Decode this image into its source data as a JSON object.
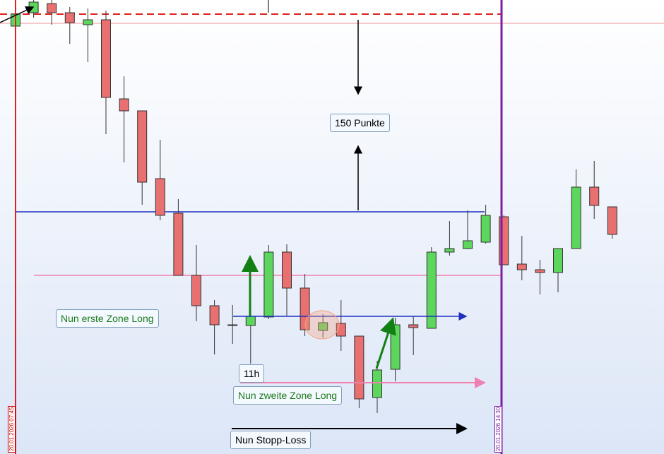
{
  "chart_data": {
    "type": "candlestick",
    "categories": [
      null,
      null,
      null,
      null,
      null,
      null,
      null,
      null,
      null,
      null,
      null,
      null,
      null,
      null,
      null,
      null,
      null,
      null,
      null,
      null,
      null,
      null,
      null,
      null,
      null,
      null,
      null,
      null,
      null,
      null,
      null,
      null,
      null,
      null
    ],
    "open": [
      606,
      625,
      638,
      625,
      608,
      615,
      503,
      486,
      390,
      341,
      253,
      210,
      183,
      182,
      194,
      286,
      235,
      175,
      185,
      167,
      80,
      120,
      183,
      178,
      286,
      291,
      300,
      336,
      269,
      261,
      257,
      291,
      378,
      350
    ],
    "high": [
      633,
      643,
      643,
      633,
      631,
      628,
      535,
      486,
      445,
      361,
      296,
      218,
      211,
      205,
      296,
      297,
      255,
      198,
      218,
      167,
      132,
      193,
      195,
      293,
      330,
      345,
      353,
      338,
      309,
      275,
      291,
      403,
      415,
      350
    ],
    "low": [
      603,
      618,
      608,
      581,
      555,
      453,
      413,
      353,
      331,
      253,
      188,
      141,
      156,
      128,
      191,
      196,
      167,
      165,
      146,
      65,
      58,
      103,
      140,
      178,
      281,
      290,
      298,
      268,
      246,
      226,
      229,
      291,
      333,
      305
    ],
    "close": [
      623,
      640,
      625,
      611,
      615,
      505,
      486,
      385,
      338,
      253,
      210,
      183,
      183,
      195,
      286,
      235,
      176,
      186,
      167,
      78,
      119,
      183,
      179,
      286,
      291,
      302,
      338,
      268,
      261,
      257,
      291,
      378,
      352,
      311
    ],
    "up_color": "#5cd65c",
    "down_color": "#e87070",
    "ylim": [
      0,
      643
    ],
    "hlines": [
      {
        "value": 610,
        "color": "#f4b8b8"
      },
      {
        "value": 623,
        "color": "#e02020",
        "dashed": true
      },
      {
        "value": 343,
        "color": "#1f2fc0"
      },
      {
        "value": 253,
        "color": "#f080b0"
      }
    ],
    "annotations": [
      "150 Punkte",
      "Nun erste Zone Long",
      "11h",
      "Nun zweite Zone Long",
      "Nun Stopp-Loss"
    ],
    "dates": [
      "20.01.2026 07:45",
      "20.01.2026 14:30"
    ]
  }
}
